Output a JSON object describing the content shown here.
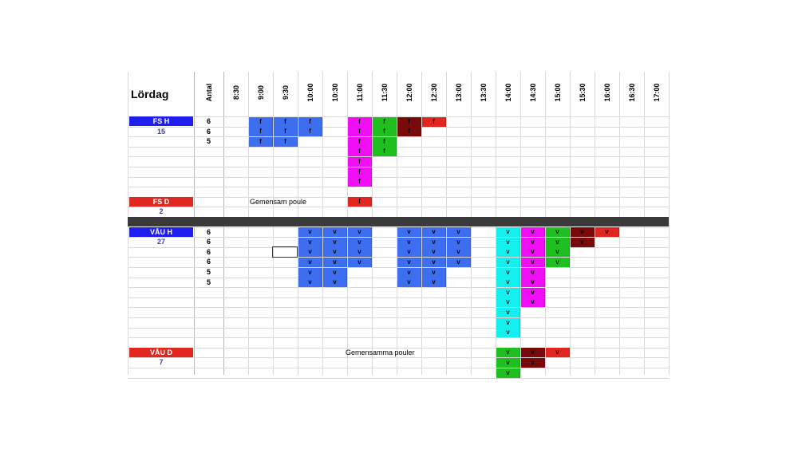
{
  "sheet": {
    "title": "Lördag",
    "columns": [
      "Antal",
      "8:30",
      "9:00",
      "9:30",
      "10:00",
      "10:30",
      "11:00",
      "11:30",
      "12:00",
      "12:30",
      "13:00",
      "13:30",
      "14:00",
      "14:30",
      "15:00",
      "15:30",
      "16:00",
      "16:30",
      "17:00"
    ]
  },
  "colors": {
    "blue": "#3d6ef0",
    "magenta": "#f00ff5",
    "green": "#1fbf1f",
    "darkred": "#7a0a0a",
    "red": "#e0261f",
    "cyan": "#14f0f0",
    "header_blue": "#1e1ef0",
    "header_red": "#e0261f",
    "separator": "#3a3a3a"
  },
  "groups": [
    {
      "id": "fs-h",
      "label": "FS H",
      "number": "15",
      "color": "header_blue"
    },
    {
      "id": "fs-d",
      "label": "FS D",
      "number": "2",
      "color": "header_red",
      "note": "Gemensam poule"
    },
    {
      "id": "vau-h",
      "label": "VÅU H",
      "number": "27",
      "color": "header_blue"
    },
    {
      "id": "vau-d",
      "label": "VÅU D",
      "number": "7",
      "color": "header_red",
      "note": "Gemensamma pouler"
    }
  ],
  "counts": {
    "fs_h": [
      "6",
      "6",
      "5"
    ],
    "vau_h": [
      "6",
      "6",
      "6",
      "6",
      "5",
      "5"
    ]
  },
  "cells": [
    {
      "row": 0,
      "col": 3,
      "span": 1,
      "text": "f",
      "color": "blue"
    },
    {
      "row": 0,
      "col": 4,
      "span": 1,
      "text": "f",
      "color": "blue"
    },
    {
      "row": 0,
      "col": 5,
      "span": 1,
      "text": "f",
      "color": "blue"
    },
    {
      "row": 0,
      "col": 7,
      "span": 1,
      "text": "f",
      "color": "magenta"
    },
    {
      "row": 0,
      "col": 8,
      "span": 1,
      "text": "f",
      "color": "green"
    },
    {
      "row": 0,
      "col": 9,
      "span": 1,
      "text": "f",
      "color": "darkred"
    },
    {
      "row": 0,
      "col": 10,
      "span": 1,
      "text": "f",
      "color": "red"
    },
    {
      "row": 1,
      "col": 3,
      "span": 1,
      "text": "f",
      "color": "blue"
    },
    {
      "row": 1,
      "col": 4,
      "span": 1,
      "text": "f",
      "color": "blue"
    },
    {
      "row": 1,
      "col": 5,
      "span": 1,
      "text": "f",
      "color": "blue"
    },
    {
      "row": 1,
      "col": 7,
      "span": 1,
      "text": "f",
      "color": "magenta"
    },
    {
      "row": 1,
      "col": 8,
      "span": 1,
      "text": "f",
      "color": "green"
    },
    {
      "row": 1,
      "col": 9,
      "span": 1,
      "text": "f",
      "color": "darkred"
    },
    {
      "row": 2,
      "col": 3,
      "span": 1,
      "text": "f",
      "color": "blue"
    },
    {
      "row": 2,
      "col": 4,
      "span": 1,
      "text": "f",
      "color": "blue"
    },
    {
      "row": 2,
      "col": 7,
      "span": 1,
      "text": "f",
      "color": "magenta"
    },
    {
      "row": 2,
      "col": 8,
      "span": 1,
      "text": "f",
      "color": "green"
    },
    {
      "row": 3,
      "col": 7,
      "span": 1,
      "text": "f",
      "color": "magenta"
    },
    {
      "row": 3,
      "col": 8,
      "span": 1,
      "text": "f",
      "color": "green"
    },
    {
      "row": 4,
      "col": 7,
      "span": 1,
      "text": "f",
      "color": "magenta"
    },
    {
      "row": 5,
      "col": 7,
      "span": 1,
      "text": "f",
      "color": "magenta"
    },
    {
      "row": 6,
      "col": 7,
      "span": 1,
      "text": "f",
      "color": "magenta"
    },
    {
      "row": 8,
      "col": 7,
      "span": 1,
      "text": "f",
      "color": "red"
    },
    {
      "row": 11,
      "col": 5,
      "span": 1,
      "text": "v",
      "color": "blue"
    },
    {
      "row": 11,
      "col": 6,
      "span": 1,
      "text": "v",
      "color": "blue"
    },
    {
      "row": 11,
      "col": 7,
      "span": 1,
      "text": "v",
      "color": "blue"
    },
    {
      "row": 11,
      "col": 9,
      "span": 1,
      "text": "v",
      "color": "blue"
    },
    {
      "row": 11,
      "col": 10,
      "span": 1,
      "text": "v",
      "color": "blue"
    },
    {
      "row": 11,
      "col": 11,
      "span": 1,
      "text": "v",
      "color": "blue"
    },
    {
      "row": 11,
      "col": 13,
      "span": 1,
      "text": "v",
      "color": "cyan"
    },
    {
      "row": 11,
      "col": 14,
      "span": 1,
      "text": "v",
      "color": "magenta"
    },
    {
      "row": 11,
      "col": 15,
      "span": 1,
      "text": "v",
      "color": "green"
    },
    {
      "row": 11,
      "col": 16,
      "span": 1,
      "text": "v",
      "color": "darkred"
    },
    {
      "row": 11,
      "col": 17,
      "span": 1,
      "text": "v",
      "color": "red"
    },
    {
      "row": 12,
      "col": 5,
      "span": 1,
      "text": "v",
      "color": "blue"
    },
    {
      "row": 12,
      "col": 6,
      "span": 1,
      "text": "v",
      "color": "blue"
    },
    {
      "row": 12,
      "col": 7,
      "span": 1,
      "text": "v",
      "color": "blue"
    },
    {
      "row": 12,
      "col": 9,
      "span": 1,
      "text": "v",
      "color": "blue"
    },
    {
      "row": 12,
      "col": 10,
      "span": 1,
      "text": "v",
      "color": "blue"
    },
    {
      "row": 12,
      "col": 11,
      "span": 1,
      "text": "v",
      "color": "blue"
    },
    {
      "row": 12,
      "col": 13,
      "span": 1,
      "text": "v",
      "color": "cyan"
    },
    {
      "row": 12,
      "col": 14,
      "span": 1,
      "text": "v",
      "color": "magenta"
    },
    {
      "row": 12,
      "col": 15,
      "span": 1,
      "text": "v",
      "color": "green"
    },
    {
      "row": 12,
      "col": 16,
      "span": 1,
      "text": "v",
      "color": "darkred"
    },
    {
      "row": 13,
      "col": 5,
      "span": 1,
      "text": "v",
      "color": "blue"
    },
    {
      "row": 13,
      "col": 6,
      "span": 1,
      "text": "v",
      "color": "blue"
    },
    {
      "row": 13,
      "col": 7,
      "span": 1,
      "text": "v",
      "color": "blue"
    },
    {
      "row": 13,
      "col": 9,
      "span": 1,
      "text": "v",
      "color": "blue"
    },
    {
      "row": 13,
      "col": 10,
      "span": 1,
      "text": "v",
      "color": "blue"
    },
    {
      "row": 13,
      "col": 11,
      "span": 1,
      "text": "v",
      "color": "blue"
    },
    {
      "row": 13,
      "col": 13,
      "span": 1,
      "text": "v",
      "color": "cyan"
    },
    {
      "row": 13,
      "col": 14,
      "span": 1,
      "text": "v",
      "color": "magenta"
    },
    {
      "row": 13,
      "col": 15,
      "span": 1,
      "text": "v",
      "color": "green"
    },
    {
      "row": 14,
      "col": 5,
      "span": 1,
      "text": "v",
      "color": "blue"
    },
    {
      "row": 14,
      "col": 6,
      "span": 1,
      "text": "v",
      "color": "blue"
    },
    {
      "row": 14,
      "col": 7,
      "span": 1,
      "text": "v",
      "color": "blue"
    },
    {
      "row": 14,
      "col": 9,
      "span": 1,
      "text": "v",
      "color": "blue"
    },
    {
      "row": 14,
      "col": 10,
      "span": 1,
      "text": "v",
      "color": "blue"
    },
    {
      "row": 14,
      "col": 11,
      "span": 1,
      "text": "v",
      "color": "blue"
    },
    {
      "row": 14,
      "col": 13,
      "span": 1,
      "text": "v",
      "color": "cyan"
    },
    {
      "row": 14,
      "col": 14,
      "span": 1,
      "text": "v",
      "color": "magenta"
    },
    {
      "row": 14,
      "col": 15,
      "span": 1,
      "text": "v",
      "color": "green"
    },
    {
      "row": 15,
      "col": 5,
      "span": 1,
      "text": "v",
      "color": "blue"
    },
    {
      "row": 15,
      "col": 6,
      "span": 1,
      "text": "v",
      "color": "blue"
    },
    {
      "row": 15,
      "col": 9,
      "span": 1,
      "text": "v",
      "color": "blue"
    },
    {
      "row": 15,
      "col": 10,
      "span": 1,
      "text": "v",
      "color": "blue"
    },
    {
      "row": 15,
      "col": 13,
      "span": 1,
      "text": "v",
      "color": "cyan"
    },
    {
      "row": 15,
      "col": 14,
      "span": 1,
      "text": "v",
      "color": "magenta"
    },
    {
      "row": 16,
      "col": 5,
      "span": 1,
      "text": "v",
      "color": "blue"
    },
    {
      "row": 16,
      "col": 6,
      "span": 1,
      "text": "v",
      "color": "blue"
    },
    {
      "row": 16,
      "col": 9,
      "span": 1,
      "text": "v",
      "color": "blue"
    },
    {
      "row": 16,
      "col": 10,
      "span": 1,
      "text": "v",
      "color": "blue"
    },
    {
      "row": 16,
      "col": 13,
      "span": 1,
      "text": "v",
      "color": "cyan"
    },
    {
      "row": 16,
      "col": 14,
      "span": 1,
      "text": "v",
      "color": "magenta"
    },
    {
      "row": 17,
      "col": 13,
      "span": 1,
      "text": "v",
      "color": "cyan"
    },
    {
      "row": 17,
      "col": 14,
      "span": 1,
      "text": "v",
      "color": "magenta"
    },
    {
      "row": 18,
      "col": 13,
      "span": 1,
      "text": "v",
      "color": "cyan"
    },
    {
      "row": 18,
      "col": 14,
      "span": 1,
      "text": "v",
      "color": "magenta"
    },
    {
      "row": 19,
      "col": 13,
      "span": 1,
      "text": "v",
      "color": "cyan"
    },
    {
      "row": 20,
      "col": 13,
      "span": 1,
      "text": "v",
      "color": "cyan"
    },
    {
      "row": 21,
      "col": 13,
      "span": 1,
      "text": "v",
      "color": "cyan"
    },
    {
      "row": 23,
      "col": 13,
      "span": 1,
      "text": "v",
      "color": "green"
    },
    {
      "row": 23,
      "col": 14,
      "span": 1,
      "text": "v",
      "color": "darkred"
    },
    {
      "row": 23,
      "col": 15,
      "span": 1,
      "text": "v",
      "color": "red"
    },
    {
      "row": 24,
      "col": 13,
      "span": 1,
      "text": "v",
      "color": "green"
    },
    {
      "row": 24,
      "col": 14,
      "span": 1,
      "text": "v",
      "color": "darkred"
    },
    {
      "row": 25,
      "col": 13,
      "span": 1,
      "text": "v",
      "color": "green"
    }
  ]
}
